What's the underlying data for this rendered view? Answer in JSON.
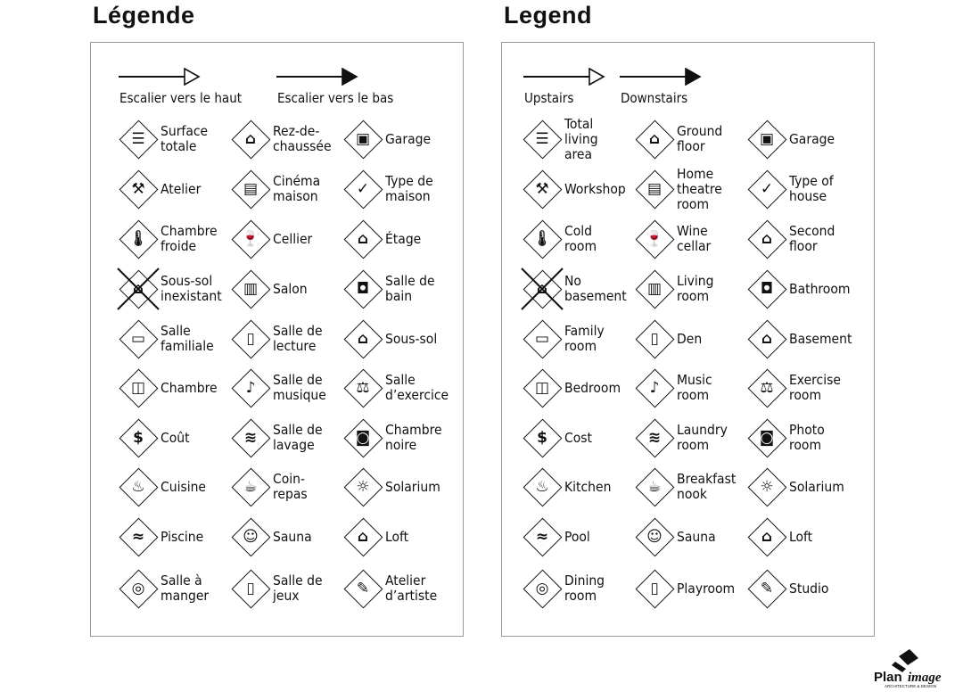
{
  "panels": [
    {
      "title": "Légende",
      "up_label": "Escalier vers le haut",
      "down_label": "Escalier vers le bas",
      "items": [
        {
          "label": "Surface\ntotale",
          "icon": "total-area-icon"
        },
        {
          "label": "Rez-de-\nchaussée",
          "icon": "ground-floor-icon"
        },
        {
          "label": "Garage",
          "icon": "garage-icon"
        },
        {
          "label": "Atelier",
          "icon": "hammer-icon"
        },
        {
          "label": "Cinéma\nmaison",
          "icon": "home-theatre-icon"
        },
        {
          "label": "Type de\nmaison",
          "icon": "house-check-icon"
        },
        {
          "label": "Chambre\nfroide",
          "icon": "thermometer-icon"
        },
        {
          "label": "Cellier",
          "icon": "wine-icon"
        },
        {
          "label": "Étage",
          "icon": "second-floor-icon"
        },
        {
          "label": "Sous-sol\ninexistant",
          "icon": "no-basement-icon"
        },
        {
          "label": "Salon",
          "icon": "sofa-icon"
        },
        {
          "label": "Salle de\nbain",
          "icon": "toilet-icon"
        },
        {
          "label": "Salle\nfamiliale",
          "icon": "tv-icon"
        },
        {
          "label": "Salle de\nlecture",
          "icon": "book-icon"
        },
        {
          "label": "Sous-sol",
          "icon": "basement-icon"
        },
        {
          "label": "Chambre",
          "icon": "bed-icon"
        },
        {
          "label": "Salle de\nmusique",
          "icon": "music-note-icon"
        },
        {
          "label": "Salle\nd’exercice",
          "icon": "weights-icon"
        },
        {
          "label": "Coût",
          "icon": "dollar-icon"
        },
        {
          "label": "Salle de\nlavage",
          "icon": "laundry-icon"
        },
        {
          "label": "Chambre\nnoire",
          "icon": "camera-icon"
        },
        {
          "label": "Cuisine",
          "icon": "pot-icon"
        },
        {
          "label": "Coin-\nrepas",
          "icon": "coffee-cup-icon"
        },
        {
          "label": "Solarium",
          "icon": "sun-icon"
        },
        {
          "label": "Piscine",
          "icon": "swimmer-icon"
        },
        {
          "label": "Sauna",
          "icon": "sauna-icon"
        },
        {
          "label": "Loft",
          "icon": "loft-icon"
        },
        {
          "label": "Salle à\nmanger",
          "icon": "plate-icon"
        },
        {
          "label": "Salle de\njeux",
          "icon": "playroom-icon"
        },
        {
          "label": "Atelier\nd’artiste",
          "icon": "palette-icon"
        }
      ]
    },
    {
      "title": "Legend",
      "up_label": "Upstairs",
      "down_label": "Downstairs",
      "items": [
        {
          "label": "Total\nliving\narea",
          "icon": "total-area-icon"
        },
        {
          "label": "Ground\nfloor",
          "icon": "ground-floor-icon"
        },
        {
          "label": "Garage",
          "icon": "garage-icon"
        },
        {
          "label": "Workshop",
          "icon": "hammer-icon"
        },
        {
          "label": "Home\ntheatre\nroom",
          "icon": "home-theatre-icon"
        },
        {
          "label": "Type of\nhouse",
          "icon": "house-check-icon"
        },
        {
          "label": "Cold\nroom",
          "icon": "thermometer-icon"
        },
        {
          "label": "Wine\ncellar",
          "icon": "wine-icon"
        },
        {
          "label": "Second\nfloor",
          "icon": "second-floor-icon"
        },
        {
          "label": "No\nbasement",
          "icon": "no-basement-icon"
        },
        {
          "label": "Living\nroom",
          "icon": "sofa-icon"
        },
        {
          "label": "Bathroom",
          "icon": "toilet-icon"
        },
        {
          "label": "Family\nroom",
          "icon": "tv-icon"
        },
        {
          "label": "Den",
          "icon": "book-icon"
        },
        {
          "label": "Basement",
          "icon": "basement-icon"
        },
        {
          "label": "Bedroom",
          "icon": "bed-icon"
        },
        {
          "label": "Music\nroom",
          "icon": "music-note-icon"
        },
        {
          "label": "Exercise\nroom",
          "icon": "weights-icon"
        },
        {
          "label": "Cost",
          "icon": "dollar-icon"
        },
        {
          "label": "Laundry\nroom",
          "icon": "laundry-icon"
        },
        {
          "label": "Photo\nroom",
          "icon": "camera-icon"
        },
        {
          "label": "Kitchen",
          "icon": "pot-icon"
        },
        {
          "label": "Breakfast\nnook",
          "icon": "coffee-cup-icon"
        },
        {
          "label": "Solarium",
          "icon": "sun-icon"
        },
        {
          "label": "Pool",
          "icon": "swimmer-icon"
        },
        {
          "label": "Sauna",
          "icon": "sauna-icon"
        },
        {
          "label": "Loft",
          "icon": "loft-icon"
        },
        {
          "label": "Dining\nroom",
          "icon": "plate-icon"
        },
        {
          "label": "Playroom",
          "icon": "playroom-icon"
        },
        {
          "label": "Studio",
          "icon": "palette-icon"
        }
      ]
    }
  ],
  "logo": {
    "name": "Planimage",
    "tagline": "ARCHITECTURE & DESIGN"
  }
}
